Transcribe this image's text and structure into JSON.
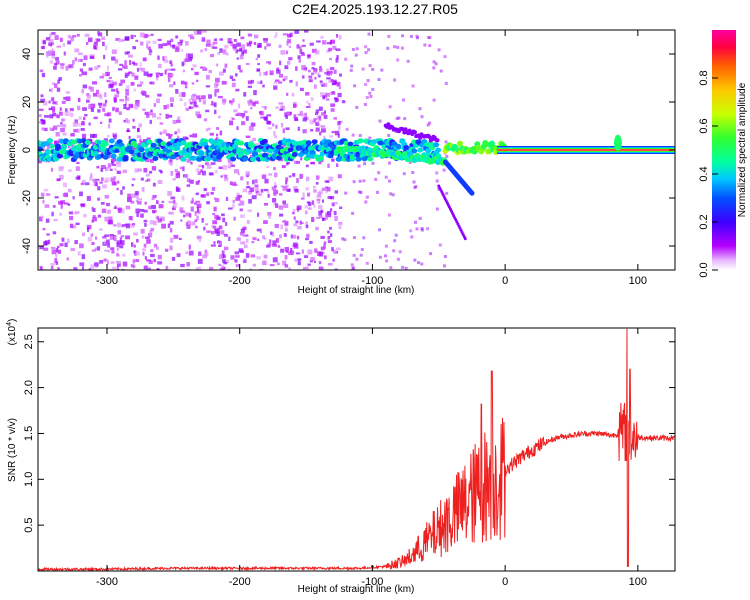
{
  "title": "C2E4.2025.193.12.27.R05",
  "chart_data": [
    {
      "type": "heatmap",
      "xlabel": "Height of straight line (km)",
      "ylabel": "Frequency (Hz)",
      "xlim": [
        -352,
        128
      ],
      "ylim": [
        -50,
        50
      ],
      "xticks": [
        -300,
        -200,
        -100,
        0,
        100
      ],
      "yticks": [
        -40,
        -20,
        0,
        20,
        40
      ],
      "grid": false,
      "colorbar": {
        "label": "Normalized spectral amplitude",
        "range": [
          0,
          1
        ],
        "ticks": [
          "0.0",
          "0.2",
          "0.4",
          "0.6",
          "0.8"
        ],
        "colormap": [
          "#ffffff",
          "#b400ff",
          "#3c00ff",
          "#0050ff",
          "#00c8ff",
          "#00ffa0",
          "#30ff30",
          "#c8ff00",
          "#ffc800",
          "#ff6000",
          "#ff0040",
          "#ff00a0"
        ]
      },
      "features": [
        {
          "x_range": [
            -352,
            -125
          ],
          "y_range": [
            -50,
            50
          ],
          "amplitude": 0.1
        },
        {
          "x_range": [
            -352,
            -50
          ],
          "y_center": 0,
          "y_halfwidth": 4,
          "amplitude": 0.35
        },
        {
          "x_range": [
            -125,
            -45
          ],
          "y_center": -3,
          "amplitude": 0.45
        },
        {
          "x_range": [
            -45,
            0
          ],
          "y_center": 1,
          "amplitude": 0.6
        },
        {
          "x_range": [
            0,
            128
          ],
          "y_center": 0,
          "amplitude": 1.0
        },
        {
          "x": 85,
          "y_center": 3,
          "amplitude": 0.5
        }
      ]
    },
    {
      "type": "line",
      "xlabel": "Height of straight line (km)",
      "ylabel": "SNR (10 * v/v)",
      "yscale_label": "(x10",
      "yscale_exp": "4",
      "yscale_close": ")",
      "xlim": [
        -352,
        128
      ],
      "ylim": [
        0,
        2.65
      ],
      "xticks": [
        -300,
        -200,
        -100,
        0,
        100
      ],
      "yticks": [
        "0.5",
        "1.0",
        "1.5",
        "2.0",
        "2.5"
      ],
      "grid": false,
      "series": [
        {
          "color": "#ee2020",
          "x": [
            -352,
            -300,
            -250,
            -200,
            -150,
            -110,
            -90,
            -75,
            -65,
            -55,
            -45,
            -35,
            -25,
            -18,
            -14,
            -10,
            0,
            10,
            20,
            30,
            40,
            50,
            60,
            70,
            80,
            88,
            92,
            95,
            100,
            110,
            128
          ],
          "y": [
            0.02,
            0.02,
            0.03,
            0.03,
            0.03,
            0.03,
            0.05,
            0.12,
            0.25,
            0.4,
            0.55,
            0.7,
            0.85,
            0.95,
            1.0,
            1.05,
            1.1,
            1.22,
            1.32,
            1.4,
            1.46,
            1.48,
            1.5,
            1.5,
            1.48,
            1.5,
            1.52,
            1.48,
            1.46,
            1.45,
            1.45
          ]
        }
      ],
      "spikes": [
        {
          "x": -10,
          "y": 2.18
        },
        {
          "x": -18,
          "y": 1.82
        },
        {
          "x": 92,
          "y": 2.64
        },
        {
          "x": 94,
          "y": 2.2
        }
      ]
    }
  ]
}
